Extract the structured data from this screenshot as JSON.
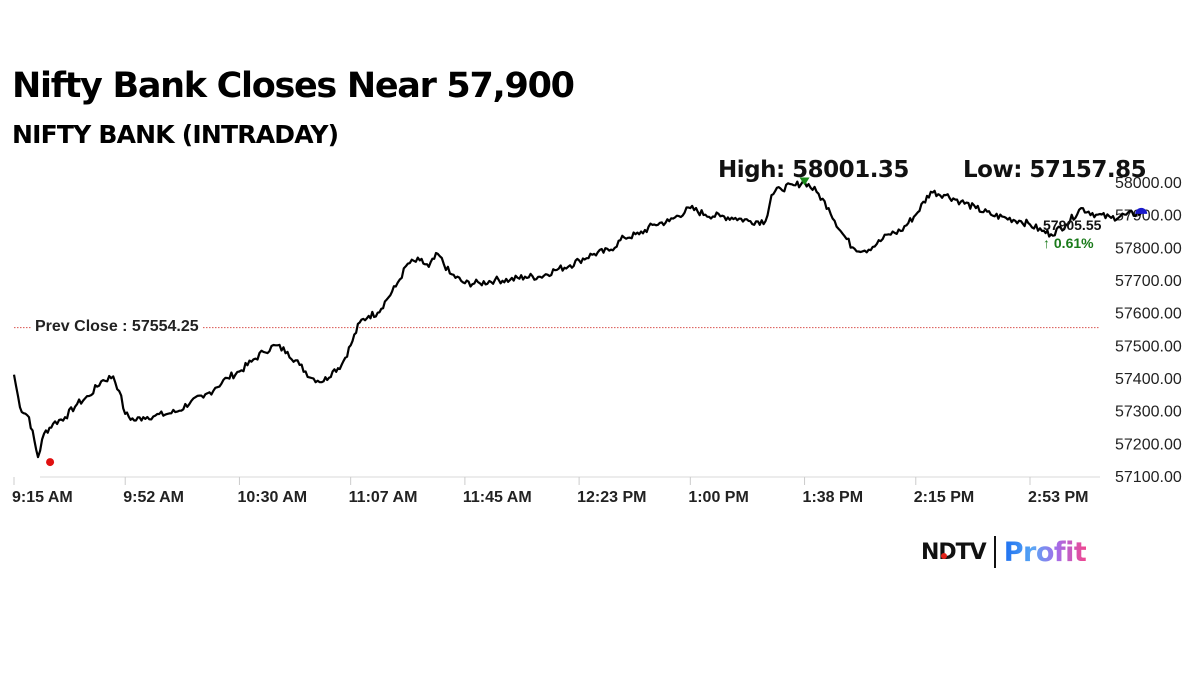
{
  "header": {
    "title": "Nifty Bank Closes Near 57,900",
    "subtitle": "NIFTY BANK (INTRADAY)",
    "high_label": "High: 58001.35",
    "low_label": "Low: 57157.85"
  },
  "annotations": {
    "prev_close_label": "Prev Close : 57554.25",
    "last_price": "57905.55",
    "change": "↑ 0.61%"
  },
  "colors": {
    "line": "#000000",
    "prev_close_line": "#d9534f",
    "high_marker": "#1a8a1a",
    "low_marker": "#e01010",
    "last_marker": "#1a1acc",
    "change_text": "#1a7a1a"
  },
  "logo": {
    "brand": "NDTV",
    "product": "Profit"
  },
  "chart_data": {
    "type": "line",
    "title": "NIFTY BANK (INTRADAY)",
    "xlabel": "",
    "ylabel": "",
    "ylim": [
      57100,
      58000
    ],
    "grid": false,
    "legend": "none",
    "y_ticks": [
      "58000.00",
      "57900.00",
      "57800.00",
      "57700.00",
      "57600.00",
      "57500.00",
      "57400.00",
      "57300.00",
      "57200.00",
      "57100.00"
    ],
    "x_ticks": [
      "9:15 AM",
      "9:52 AM",
      "10:30 AM",
      "11:07 AM",
      "11:45 AM",
      "12:23 PM",
      "1:00 PM",
      "1:38 PM",
      "2:15 PM",
      "2:53 PM"
    ],
    "prev_close": 57554.25,
    "high": 58001.35,
    "low": 57157.85,
    "last": 57905.55,
    "change_pct": 0.61,
    "series": [
      {
        "name": "NIFTY BANK",
        "x": [
          "9:15 AM",
          "9:17 AM",
          "9:20 AM",
          "9:23 AM",
          "9:25 AM",
          "9:28 AM",
          "9:32 AM",
          "9:36 AM",
          "9:40 AM",
          "9:44 AM",
          "9:48 AM",
          "9:50 AM",
          "9:52 AM",
          "9:55 AM",
          "9:58 AM",
          "10:02 AM",
          "10:06 AM",
          "10:10 AM",
          "10:14 AM",
          "10:18 AM",
          "10:22 AM",
          "10:26 AM",
          "10:30 AM",
          "10:34 AM",
          "10:38 AM",
          "10:42 AM",
          "10:46 AM",
          "10:50 AM",
          "10:54 AM",
          "10:58 AM",
          "11:01 AM",
          "11:04 AM",
          "11:07 AM",
          "11:10 AM",
          "11:13 AM",
          "11:16 AM",
          "11:19 AM",
          "11:22 AM",
          "11:26 AM",
          "11:30 AM",
          "11:33 AM",
          "11:36 AM",
          "11:40 AM",
          "11:45 AM",
          "11:50 AM",
          "11:55 AM",
          "12:00 PM",
          "12:05 PM",
          "12:10 PM",
          "12:15 PM",
          "12:20 PM",
          "12:23 PM",
          "12:28 PM",
          "12:33 PM",
          "12:38 PM",
          "12:43 PM",
          "12:48 PM",
          "12:53 PM",
          "1:00 PM",
          "1:05 PM",
          "1:10 PM",
          "1:15 PM",
          "1:20 PM",
          "1:25 PM",
          "1:27 PM",
          "1:30 PM",
          "1:35 PM",
          "1:38 PM",
          "1:42 PM",
          "1:46 PM",
          "1:50 PM",
          "1:54 PM",
          "1:58 PM",
          "2:02 PM",
          "2:06 PM",
          "2:10 PM",
          "2:15 PM",
          "2:20 PM",
          "2:25 PM",
          "2:30 PM",
          "2:35 PM",
          "2:40 PM",
          "2:45 PM",
          "2:50 PM",
          "2:53 PM",
          "2:57 PM",
          "3:00 PM",
          "3:05 PM",
          "3:10 PM",
          "3:15 PM",
          "3:20 PM",
          "3:25 PM",
          "3:30 PM"
        ],
        "values": [
          57410,
          57310,
          57280,
          57158,
          57230,
          57260,
          57280,
          57320,
          57345,
          57390,
          57405,
          57360,
          57290,
          57270,
          57280,
          57285,
          57290,
          57300,
          57330,
          57340,
          57370,
          57400,
          57420,
          57450,
          57480,
          57500,
          57480,
          57440,
          57400,
          57390,
          57420,
          57440,
          57500,
          57570,
          57590,
          57600,
          57640,
          57680,
          57750,
          57760,
          57740,
          57780,
          57720,
          57690,
          57690,
          57700,
          57700,
          57710,
          57710,
          57730,
          57745,
          57760,
          57780,
          57790,
          57830,
          57840,
          57870,
          57880,
          57920,
          57900,
          57895,
          57890,
          57880,
          57880,
          57960,
          57980,
          57990,
          58001,
          57970,
          57920,
          57850,
          57800,
          57790,
          57810,
          57840,
          57850,
          57900,
          57970,
          57960,
          57940,
          57920,
          57900,
          57890,
          57880,
          57870,
          57850,
          57840,
          57870,
          57920,
          57900,
          57890,
          57900,
          57905
        ]
      }
    ]
  }
}
